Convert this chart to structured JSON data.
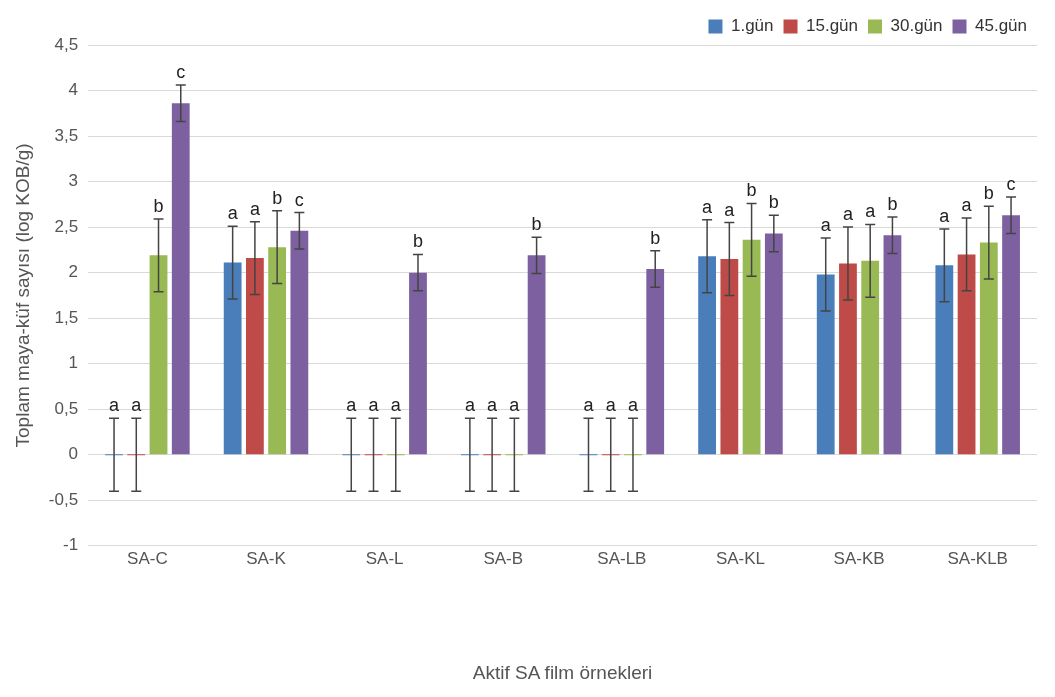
{
  "chart_data": {
    "type": "bar",
    "xlabel": "Aktif SA film örnekleri",
    "ylabel": "Toplam maya-küf sayısı (log KOB/g)",
    "categories": [
      "SA-C",
      "SA-K",
      "SA-L",
      "SA-B",
      "SA-LB",
      "SA-KL",
      "SA-KB",
      "SA-KLB"
    ],
    "series": [
      {
        "name": "1.gün",
        "color": "#4a7ebb",
        "values": [
          0,
          2.11,
          0,
          0,
          0,
          2.18,
          1.98,
          2.08
        ],
        "errors": [
          0.4,
          0.4,
          0.4,
          0.4,
          0.4,
          0.4,
          0.4,
          0.4
        ],
        "value_labels": [
          "a",
          "a",
          "a",
          "a",
          "a",
          "a",
          "a",
          "a"
        ]
      },
      {
        "name": "15.gün",
        "color": "#be4b48",
        "values": [
          0,
          2.16,
          0,
          0,
          0,
          2.15,
          2.1,
          2.2
        ],
        "errors": [
          0.4,
          0.4,
          0.4,
          0.4,
          0.4,
          0.4,
          0.4,
          0.4
        ],
        "value_labels": [
          "a",
          "a",
          "a",
          "a",
          "a",
          "a",
          "a",
          "a"
        ]
      },
      {
        "name": "30.gün",
        "color": "#98b954",
        "values": [
          2.19,
          2.28,
          0,
          0,
          0,
          2.36,
          2.13,
          2.33
        ],
        "errors": [
          0.4,
          0.4,
          0.4,
          0.4,
          0.4,
          0.4,
          0.4,
          0.4
        ],
        "value_labels": [
          "b",
          "b",
          "a",
          "a",
          "a",
          "b",
          "a",
          "b"
        ]
      },
      {
        "name": "45.gün",
        "color": "#7d60a0",
        "values": [
          3.86,
          2.46,
          2,
          2.19,
          2.04,
          2.43,
          2.41,
          2.63
        ],
        "errors": [
          0.2,
          0.2,
          0.2,
          0.2,
          0.2,
          0.2,
          0.2,
          0.2
        ],
        "value_labels": [
          "c",
          "c",
          "b",
          "b",
          "b",
          "b",
          "b",
          "c"
        ]
      }
    ],
    "ylim": [
      -1,
      4.5
    ],
    "yticks": [
      -1,
      {
        "value": -0.5,
        "label": "-0,5"
      },
      0,
      {
        "value": 0.5,
        "label": "0,5"
      },
      1,
      {
        "value": 1.5,
        "label": "1,5"
      },
      2,
      {
        "value": 2.5,
        "label": "2,5"
      },
      3,
      {
        "value": 3.5,
        "label": "3,5"
      },
      4,
      {
        "value": 4.5,
        "label": "4,5"
      }
    ],
    "grid": "y",
    "legend": "top right"
  }
}
